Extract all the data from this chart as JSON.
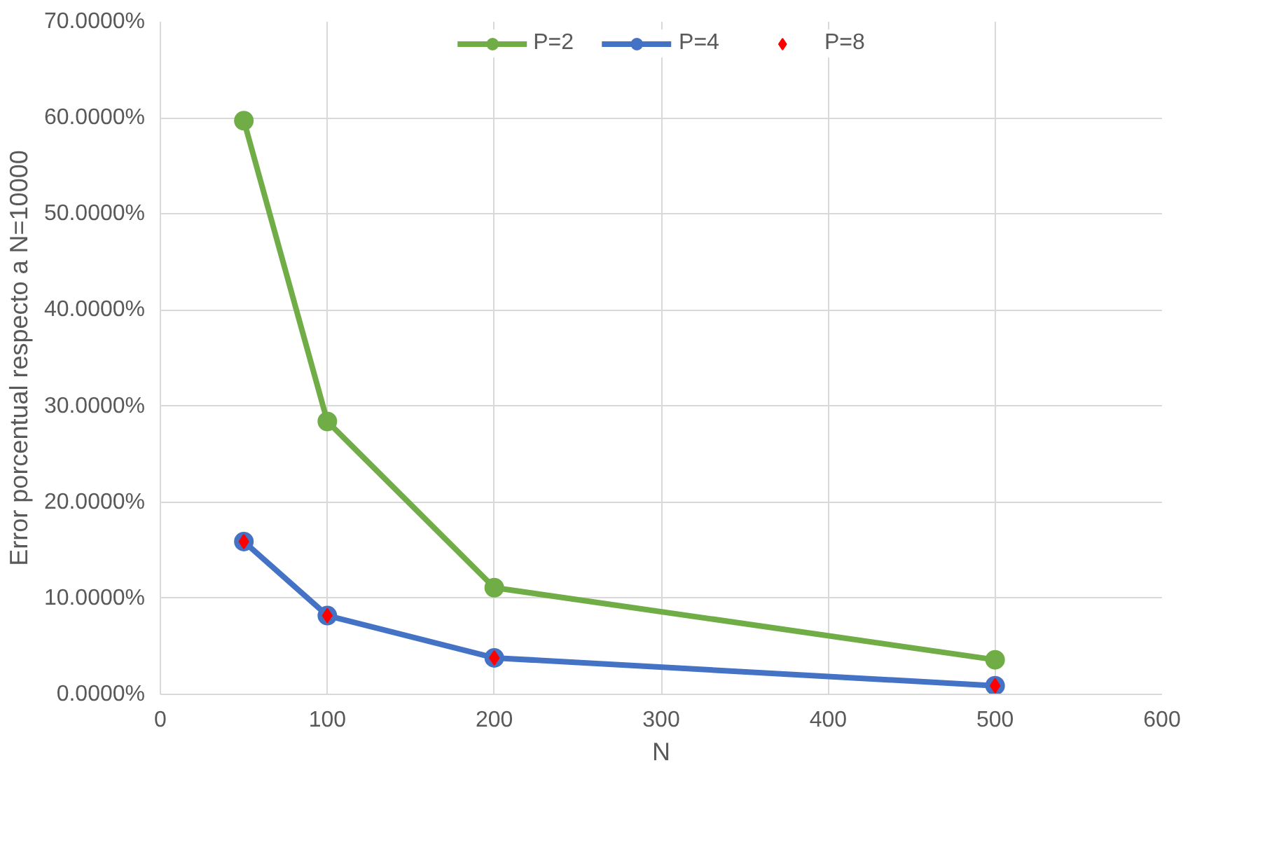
{
  "chart_data": {
    "type": "line",
    "xlabel": "N",
    "ylabel": "Error porcentual respecto a N=10000",
    "x": [
      50,
      100,
      200,
      500
    ],
    "series": [
      {
        "name": "P=2",
        "color": "#70ad47",
        "values": [
          59.7,
          28.4,
          11.1,
          3.6
        ],
        "marker": "circle"
      },
      {
        "name": "P=4",
        "color": "#4472c4",
        "values": [
          15.9,
          8.2,
          3.8,
          0.9
        ],
        "marker": "circle"
      },
      {
        "name": "P=8",
        "type": "scatter",
        "color": "#ff0000",
        "values": [
          15.9,
          8.2,
          3.8,
          0.9
        ],
        "marker": "diamond"
      }
    ],
    "xlim": [
      0,
      600
    ],
    "xticks": [
      0,
      100,
      200,
      300,
      400,
      500,
      600
    ],
    "ylim": [
      0,
      70
    ],
    "yticks": [
      {
        "value": 0,
        "label": "0.0000%"
      },
      {
        "value": 10,
        "label": "10.0000%"
      },
      {
        "value": 20,
        "label": "20.0000%"
      },
      {
        "value": 30,
        "label": "30.0000%"
      },
      {
        "value": 40,
        "label": "40.0000%"
      },
      {
        "value": 50,
        "label": "50.0000%"
      },
      {
        "value": 60,
        "label": "60.0000%"
      },
      {
        "value": 70,
        "label": "70.0000%"
      }
    ],
    "grid": true,
    "legend": "top"
  }
}
